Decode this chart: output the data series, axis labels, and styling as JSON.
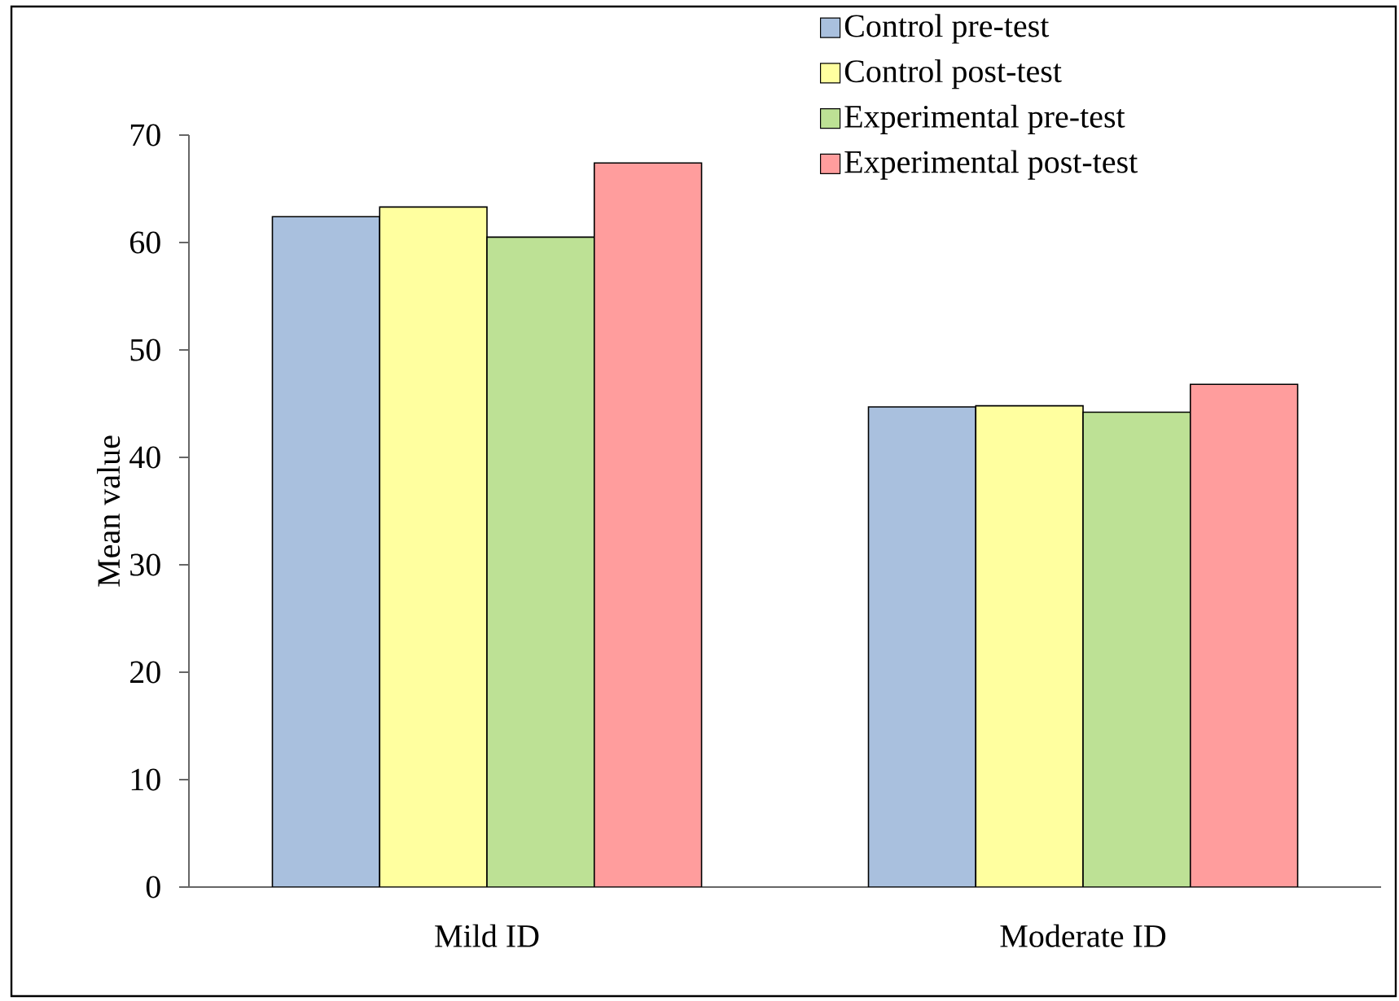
{
  "chart_data": {
    "type": "bar",
    "ylabel": "Mean value",
    "categories": [
      "Mild ID",
      "Moderate ID"
    ],
    "series": [
      {
        "name": "Control pre-test",
        "color": "#a9c0de",
        "values": [
          62.4,
          44.7
        ]
      },
      {
        "name": "Control post-test",
        "color": "#ffff9f",
        "values": [
          63.3,
          44.8
        ]
      },
      {
        "name": "Experimental pre-test",
        "color": "#bde195",
        "values": [
          60.5,
          44.2
        ]
      },
      {
        "name": "Experimental post-test",
        "color": "#ff9d9d",
        "values": [
          67.4,
          46.8
        ]
      }
    ],
    "ylim": [
      0,
      70
    ],
    "yticks": [
      0,
      10,
      20,
      30,
      40,
      50,
      60,
      70
    ],
    "legend": "top right"
  }
}
